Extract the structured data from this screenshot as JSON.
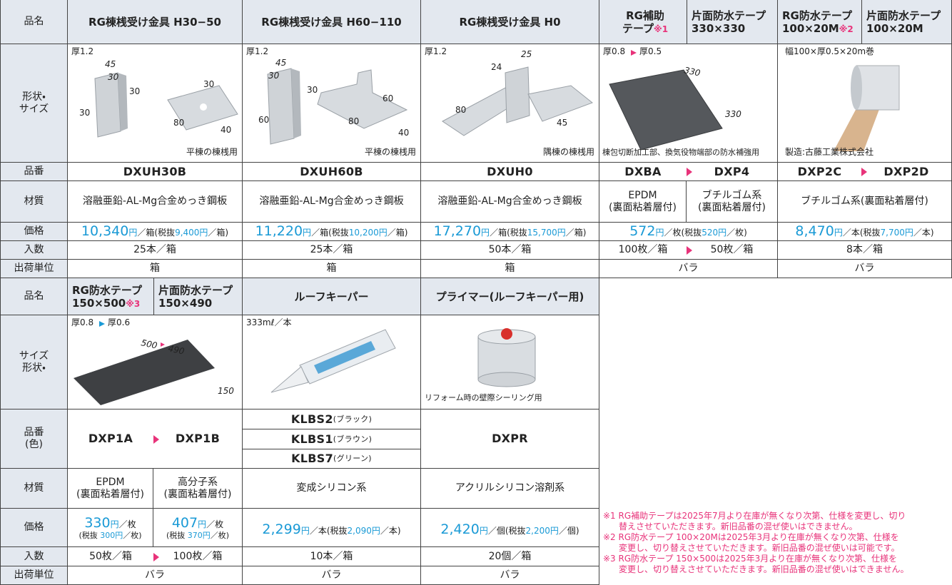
{
  "top": {
    "labels": {
      "name": "品名",
      "shape": [
        "形状・",
        "サイズ"
      ],
      "code": "品番",
      "material": "材質",
      "price": "価格",
      "qty": "入数",
      "unit": "出荷単位"
    },
    "products": [
      {
        "name": "RG棟桟受け金具 H30−50",
        "thickness": "厚1.2",
        "dims": [
          "45",
          "30",
          "30",
          "30",
          "30",
          "80",
          "40"
        ],
        "caption": "平棟の棟桟用",
        "code": "DXUH30B",
        "material": "溶融亜鉛-AL-Mg合金めっき鋼板",
        "price": {
          "price": "10,340",
          "yen": "円",
          "per": "／箱(税抜",
          "ex": "9,400円",
          "close": "／箱)"
        },
        "qty": "25本／箱",
        "unit": "箱"
      },
      {
        "name": "RG棟桟受け金具 H60−110",
        "thickness": "厚1.2",
        "dims": [
          "45",
          "30",
          "30",
          "60",
          "60",
          "80",
          "40"
        ],
        "caption": "平棟の棟桟用",
        "code": "DXUH60B",
        "material": "溶融亜鉛-AL-Mg合金めっき鋼板",
        "price": {
          "price": "11,220",
          "yen": "円",
          "per": "／箱(税抜",
          "ex": "10,200円",
          "close": "／箱)"
        },
        "qty": "25本／箱",
        "unit": "箱"
      },
      {
        "name": "RG棟桟受け金具 H0",
        "thickness": "厚1.2",
        "dims": [
          "25",
          "24",
          "80",
          "45"
        ],
        "caption": "隅棟の棟桟用",
        "code": "DXUH0",
        "material": "溶融亜鉛-AL-Mg合金めっき鋼板",
        "price": {
          "price": "17,270",
          "yen": "円",
          "per": "／箱(税抜",
          "ex": "15,700円",
          "close": "／箱)"
        },
        "qty": "50本／箱",
        "unit": "箱"
      },
      {
        "name_a": [
          "RG補助",
          "テープ"
        ],
        "note": "※1",
        "name_b": [
          "片面防水テープ",
          "330×330"
        ],
        "thickness_a": "厚0.8",
        "thickness_b": "厚0.5",
        "dims": [
          "330",
          "330"
        ],
        "caption": "棟包切断加工部、換気役物端部の防水補強用",
        "code_a": "DXBA",
        "code_b": "DXP4",
        "material_a": [
          "EPDM",
          "(裏面粘着層付)"
        ],
        "material_b": [
          "ブチルゴム系",
          "(裏面粘着層付)"
        ],
        "price": {
          "price": "572",
          "yen": "円",
          "per": "／枚(税抜",
          "ex": "520円",
          "close": "／枚)"
        },
        "qty_a": "100枚／箱",
        "qty_b": "50枚／箱",
        "unit": "バラ"
      },
      {
        "name_a": [
          "RG防水テープ",
          "100×20M"
        ],
        "note": "※2",
        "name_b": [
          "片面防水テープ",
          "100×20M"
        ],
        "spec": "幅100×厚0.5×20m巻",
        "caption": "製造:古藤工業株式会社",
        "code_a": "DXP2C",
        "code_b": "DXP2D",
        "material": "ブチルゴム系(裏面粘着層付)",
        "price": {
          "price": "8,470",
          "yen": "円",
          "per": "／本(税抜",
          "ex": "7,700円",
          "close": "／本)"
        },
        "qty": "8本／箱",
        "unit": "バラ"
      }
    ]
  },
  "bottom": {
    "labels": {
      "name": "品名",
      "shape": [
        "サイズ",
        "形状・"
      ],
      "code": [
        "品番",
        "(色)"
      ],
      "material": "材質",
      "price": "価格",
      "qty": "入数",
      "unit": "出荷単位"
    },
    "products": [
      {
        "name_a": [
          "RG防水テープ",
          "150×500"
        ],
        "note": "※3",
        "name_b": [
          "片面防水テープ",
          "150×490"
        ],
        "thickness_a": "厚0.8",
        "thickness_b": "厚0.6",
        "dims": [
          "500",
          "490",
          "150"
        ],
        "code_a": "DXP1A",
        "code_b": "DXP1B",
        "material_a": [
          "EPDM",
          "(裏面粘着層付)"
        ],
        "material_b": [
          "高分子系",
          "(裏面粘着層付)"
        ],
        "price_a": {
          "price": "330",
          "yen": "円",
          "per": "／枚",
          "open": "(税抜 ",
          "ex": "300円",
          "close": "／枚)"
        },
        "price_b": {
          "price": "407",
          "yen": "円",
          "per": "／枚",
          "open": "(税抜 ",
          "ex": "370円",
          "close": "／枚)"
        },
        "qty_a": "50枚／箱",
        "qty_b": "100枚／箱",
        "unit": "バラ"
      },
      {
        "name": "ルーフキーパー",
        "spec": "333mℓ／本",
        "codes": [
          {
            "code": "KLBS2",
            "color": "(ブラック)"
          },
          {
            "code": "KLBS1",
            "color": "(ブラウン)"
          },
          {
            "code": "KLBS7",
            "color": "(グリーン)"
          }
        ],
        "material": "変成シリコン系",
        "price": {
          "price": "2,299",
          "yen": "円",
          "per": "／本(税抜",
          "ex": "2,090円",
          "close": "／本)"
        },
        "qty": "10本／箱",
        "unit": "バラ"
      },
      {
        "name": "プライマー(ルーフキーパー用)",
        "caption": "リフォーム時の壁際シーリング用",
        "code": "DXPR",
        "material": "アクリルシリコン溶剤系",
        "price": {
          "price": "2,420",
          "yen": "円",
          "per": "／個(税抜",
          "ex": "2,200円",
          "close": "／個)"
        },
        "qty": "20個／箱",
        "unit": "バラ"
      }
    ]
  },
  "notes": [
    {
      "mark": "※1",
      "lines": [
        "RG補助テープは2025年7月より在庫が無くなり次第、仕様を変更し、切り",
        "替えさせていただきます。新旧品番の混ぜ使いはできません。"
      ]
    },
    {
      "mark": "※2",
      "lines": [
        "RG防水テープ 100×20Mは2025年3月より在庫が無くなり次第、仕様を",
        "変更し、切り替えさせていただきます。新旧品番の混ぜ使いは可能です。"
      ]
    },
    {
      "mark": "※3",
      "lines": [
        "RG防水テープ 150×500は2025年3月より在庫が無くなり次第、仕様を",
        "変更し、切り替えさせていただきます。新旧品番の混ぜ使いはできません。"
      ]
    }
  ]
}
